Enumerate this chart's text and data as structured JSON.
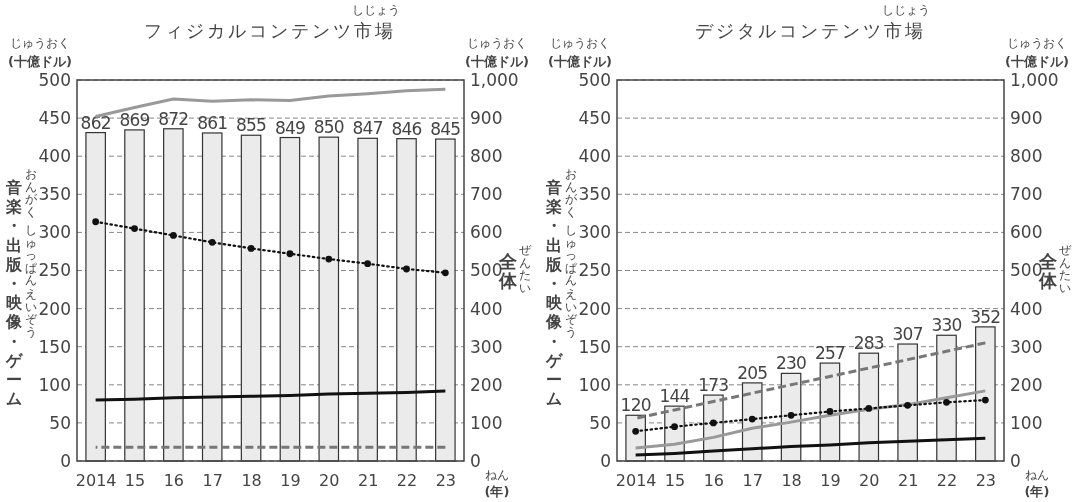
{
  "chart_data": [
    {
      "type": "bar",
      "title": "フィジカルコンテンツ市場",
      "ylabel": "音楽・出版・映像・ゲーム",
      "y2label": "全体",
      "categories": [
        "2014",
        "15",
        "16",
        "17",
        "18",
        "19",
        "20",
        "21",
        "22",
        "23"
      ],
      "ylim": [
        0,
        500
      ],
      "yticks": [
        0,
        50,
        100,
        150,
        200,
        250,
        300,
        350,
        400,
        450,
        500
      ],
      "y2lim": [
        0,
        1000
      ],
      "y2ticks": [
        0,
        100,
        200,
        300,
        400,
        500,
        600,
        700,
        800,
        900,
        {
          "value": 1000,
          "label": "1,000"
        }
      ],
      "grid": "y",
      "annotations": [
        "(十億ドル)",
        "(十億ドル)",
        "(年)",
        "じゅうおく",
        "じゅうおく",
        "しじょう",
        "おんがく",
        "しゅっぱん",
        "えいぞう",
        "ぜんたい",
        "ねん"
      ],
      "series": [
        {
          "axis": "y2",
          "color": "#ebebeb",
          "values": [
            862,
            869,
            872,
            861,
            855,
            849,
            850,
            847,
            846,
            845
          ],
          "value_labels": [
            "862",
            "869",
            "872",
            "861",
            "855",
            "849",
            "850",
            "847",
            "846",
            "845"
          ]
        },
        {
          "type": "line",
          "color": "#999999",
          "line_style": "solid",
          "values": [
            452,
            464,
            475,
            472,
            474,
            473,
            479,
            482,
            486,
            488
          ]
        },
        {
          "type": "line",
          "color": "#111111",
          "line_style": "dotted",
          "marker": "circle",
          "values": [
            314,
            305,
            296,
            287,
            279,
            272,
            265,
            259,
            252,
            247
          ]
        },
        {
          "type": "line",
          "color": "#111111",
          "line_style": "solid",
          "values": [
            80,
            81,
            83,
            84,
            85,
            86,
            88,
            89,
            90,
            92
          ]
        },
        {
          "type": "line",
          "color": "#777777",
          "line_style": "dashed",
          "values": [
            18,
            18,
            18,
            18,
            18,
            18,
            18,
            18,
            18,
            18
          ]
        }
      ]
    },
    {
      "type": "bar",
      "title": "デジタルコンテンツ市場",
      "ylabel": "音楽・出版・映像・ゲーム",
      "y2label": "全体",
      "categories": [
        "2014",
        "15",
        "16",
        "17",
        "18",
        "19",
        "20",
        "21",
        "22",
        "23"
      ],
      "ylim": [
        0,
        500
      ],
      "yticks": [
        0,
        50,
        100,
        150,
        200,
        250,
        300,
        350,
        400,
        450,
        500
      ],
      "y2lim": [
        0,
        1000
      ],
      "y2ticks": [
        0,
        100,
        200,
        300,
        400,
        500,
        600,
        700,
        800,
        900,
        {
          "value": 1000,
          "label": "1,000"
        }
      ],
      "grid": "y",
      "annotations": [
        "(十億ドル)",
        "(十億ドル)",
        "(年)",
        "じゅうおく",
        "じゅうおく",
        "しじょう",
        "おんがく",
        "しゅっぱん",
        "えいぞう",
        "ぜんたい",
        "ねん"
      ],
      "series": [
        {
          "axis": "y2",
          "color": "#ebebeb",
          "values": [
            120,
            144,
            173,
            205,
            230,
            257,
            283,
            307,
            330,
            352
          ],
          "value_labels": [
            "120",
            "144",
            "173",
            "205",
            "230",
            "257",
            "283",
            "307",
            "330",
            "352"
          ]
        },
        {
          "type": "line",
          "color": "#777777",
          "line_style": "dashed",
          "values": [
            56,
            67,
            78,
            89,
            100,
            111,
            122,
            133,
            144,
            155
          ]
        },
        {
          "type": "line",
          "color": "#999999",
          "line_style": "solid",
          "values": [
            17,
            22,
            31,
            43,
            51,
            60,
            68,
            74,
            83,
            92
          ]
        },
        {
          "type": "line",
          "color": "#111111",
          "line_style": "dotted",
          "marker": "circle",
          "values": [
            39,
            45,
            50,
            55,
            60,
            65,
            69,
            73,
            77,
            80
          ]
        },
        {
          "type": "line",
          "color": "#111111",
          "line_style": "solid",
          "values": [
            8,
            10,
            13,
            16,
            19,
            21,
            24,
            26,
            28,
            30
          ]
        }
      ]
    }
  ]
}
